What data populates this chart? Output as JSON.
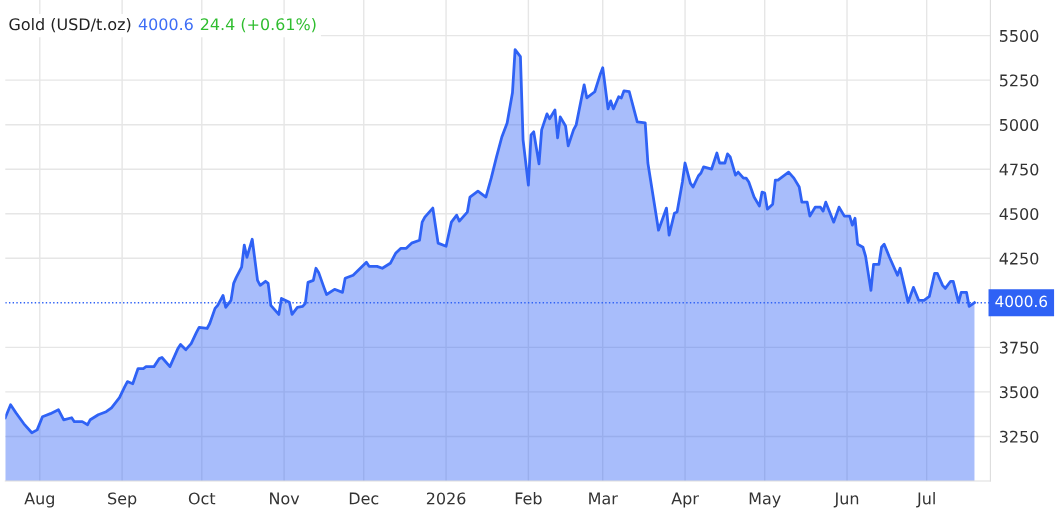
{
  "chart_data": {
    "type": "area",
    "title": "Gold (USD/t.oz)",
    "annotations": [
      "4000.6",
      "24.4 (+0.61%)"
    ],
    "series": [
      {
        "color": "#2f62f5",
        "x": [
          "2025-07-19",
          "2025-07-21",
          "2025-07-23",
          "2025-07-26",
          "2025-07-29",
          "2025-07-31",
          "2025-08-02",
          "2025-08-05",
          "2025-08-08",
          "2025-08-10",
          "2025-08-13",
          "2025-08-14",
          "2025-08-17",
          "2025-08-19",
          "2025-08-20",
          "2025-08-23",
          "2025-08-26",
          "2025-08-28",
          "2025-08-31",
          "2025-09-02",
          "2025-09-03",
          "2025-09-05",
          "2025-09-07",
          "2025-09-09",
          "2025-09-10",
          "2025-09-13",
          "2025-09-15",
          "2025-09-16",
          "2025-09-19",
          "2025-09-22",
          "2025-09-23",
          "2025-09-25",
          "2025-09-27",
          "2025-09-29",
          "2025-09-30",
          "2025-10-03",
          "2025-10-04",
          "2025-10-06",
          "2025-10-07",
          "2025-10-09",
          "2025-10-10",
          "2025-10-12",
          "2025-10-13",
          "2025-10-14",
          "2025-10-16",
          "2025-10-17",
          "2025-10-18",
          "2025-10-20",
          "2025-10-22",
          "2025-10-23",
          "2025-10-25",
          "2025-10-26",
          "2025-10-27",
          "2025-10-30",
          "2025-10-31",
          "2025-11-03",
          "2025-11-04",
          "2025-11-06",
          "2025-11-08",
          "2025-11-09",
          "2025-11-10",
          "2025-11-12",
          "2025-11-13",
          "2025-11-14",
          "2025-11-16",
          "2025-11-17",
          "2025-11-20",
          "2025-11-23",
          "2025-11-24",
          "2025-11-27",
          "2025-12-02",
          "2025-12-03",
          "2025-12-06",
          "2025-12-08",
          "2025-12-11",
          "2025-12-13",
          "2025-12-15",
          "2025-12-17",
          "2025-12-19",
          "2025-12-22",
          "2025-12-23",
          "2025-12-24",
          "2025-12-27",
          "2025-12-29",
          "2026-01-01",
          "2026-01-03",
          "2026-01-05",
          "2026-01-06",
          "2026-01-09",
          "2026-01-10",
          "2026-01-13",
          "2026-01-16",
          "2026-01-18",
          "2026-01-20",
          "2026-01-22",
          "2026-01-24",
          "2026-01-26",
          "2026-01-27",
          "2026-01-29",
          "2026-01-30",
          "2026-02-01",
          "2026-02-02",
          "2026-02-03",
          "2026-02-05",
          "2026-02-06",
          "2026-02-08",
          "2026-02-09",
          "2026-02-11",
          "2026-02-12",
          "2026-02-13",
          "2026-02-15",
          "2026-02-16",
          "2026-02-18",
          "2026-02-19",
          "2026-02-22",
          "2026-02-23",
          "2026-02-26",
          "2026-02-28",
          "2026-03-01",
          "2026-03-03",
          "2026-03-04",
          "2026-03-05",
          "2026-03-07",
          "2026-03-08",
          "2026-03-09",
          "2026-03-11",
          "2026-03-13",
          "2026-03-14",
          "2026-03-17",
          "2026-03-18",
          "2026-03-21",
          "2026-03-22",
          "2026-03-25",
          "2026-03-26",
          "2026-03-28",
          "2026-03-29",
          "2026-03-31",
          "2026-04-01",
          "2026-04-03",
          "2026-04-04",
          "2026-04-06",
          "2026-04-07",
          "2026-04-08",
          "2026-04-11",
          "2026-04-13",
          "2026-04-14",
          "2026-04-16",
          "2026-04-17",
          "2026-04-18",
          "2026-04-20",
          "2026-04-21",
          "2026-04-23",
          "2026-04-24",
          "2026-04-25",
          "2026-04-27",
          "2026-04-29",
          "2026-04-30",
          "2026-05-01",
          "2026-05-02",
          "2026-05-04",
          "2026-05-05",
          "2026-05-06",
          "2026-05-10",
          "2026-05-12",
          "2026-05-14",
          "2026-05-15",
          "2026-05-17",
          "2026-05-18",
          "2026-05-20",
          "2026-05-22",
          "2026-05-23",
          "2026-05-24",
          "2026-05-27",
          "2026-05-29",
          "2026-05-31",
          "2026-06-02",
          "2026-06-03",
          "2026-06-04",
          "2026-06-05",
          "2026-06-07",
          "2026-06-08",
          "2026-06-10",
          "2026-06-11",
          "2026-06-13",
          "2026-06-14",
          "2026-06-15",
          "2026-06-17",
          "2026-06-20",
          "2026-06-21",
          "2026-06-24",
          "2026-06-26",
          "2026-06-28",
          "2026-06-30",
          "2026-07-02",
          "2026-07-04",
          "2026-07-05",
          "2026-07-07",
          "2026-07-08",
          "2026-07-10",
          "2026-07-11",
          "2026-07-13",
          "2026-07-14",
          "2026-07-16",
          "2026-07-17",
          "2026-07-19"
        ],
        "values": [
          3355,
          3428,
          3383,
          3321,
          3271,
          3287,
          3361,
          3378,
          3400,
          3343,
          3355,
          3333,
          3333,
          3316,
          3344,
          3372,
          3389,
          3411,
          3468,
          3530,
          3558,
          3546,
          3631,
          3631,
          3642,
          3642,
          3687,
          3693,
          3642,
          3743,
          3766,
          3737,
          3771,
          3834,
          3862,
          3856,
          3884,
          3969,
          3986,
          4042,
          3975,
          4014,
          4109,
          4143,
          4200,
          4324,
          4256,
          4357,
          4126,
          4098,
          4121,
          4109,
          3986,
          3935,
          4025,
          4003,
          3935,
          3975,
          3980,
          3997,
          4115,
          4126,
          4194,
          4171,
          4087,
          4047,
          4076,
          4059,
          4138,
          4155,
          4228,
          4205,
          4205,
          4194,
          4222,
          4278,
          4306,
          4306,
          4335,
          4351,
          4453,
          4481,
          4532,
          4335,
          4318,
          4453,
          4492,
          4459,
          4509,
          4594,
          4627,
          4594,
          4700,
          4819,
          4931,
          5010,
          5179,
          5421,
          5382,
          4915,
          4661,
          4943,
          4960,
          4780,
          4971,
          5061,
          5033,
          5083,
          4926,
          5044,
          4993,
          4881,
          4971,
          4999,
          5224,
          5151,
          5185,
          5280,
          5320,
          5089,
          5134,
          5089,
          5157,
          5150,
          5190,
          5185,
          5072,
          5016,
          5010,
          4785,
          4503,
          4408,
          4532,
          4380,
          4503,
          4510,
          4678,
          4785,
          4672,
          4650,
          4712,
          4729,
          4763,
          4751,
          4841,
          4785,
          4785,
          4836,
          4819,
          4717,
          4734,
          4700,
          4700,
          4678,
          4594,
          4543,
          4622,
          4616,
          4526,
          4554,
          4689,
          4689,
          4734,
          4700,
          4650,
          4565,
          4565,
          4487,
          4537,
          4537,
          4515,
          4565,
          4453,
          4537,
          4487,
          4487,
          4436,
          4475,
          4329,
          4312,
          4261,
          4070,
          4216,
          4216,
          4312,
          4329,
          4256,
          4155,
          4194,
          4003,
          4087,
          4014,
          4014,
          4036,
          4166,
          4166,
          4098,
          4081,
          4121,
          4121,
          4003,
          4059,
          4059,
          3980,
          4000.6
        ]
      }
    ],
    "xlim": [
      "2025-07-19",
      "2026-07-25"
    ],
    "xticks": [
      {
        "value": "2025-08-01",
        "label": "Aug"
      },
      {
        "value": "2025-09-01",
        "label": "Sep"
      },
      {
        "value": "2025-10-01",
        "label": "Oct"
      },
      {
        "value": "2025-11-01",
        "label": "Nov"
      },
      {
        "value": "2025-12-01",
        "label": "Dec"
      },
      {
        "value": "2026-01-01",
        "label": "2026"
      },
      {
        "value": "2026-02-01",
        "label": "Feb"
      },
      {
        "value": "2026-03-01",
        "label": "Mar"
      },
      {
        "value": "2026-04-01",
        "label": "Apr"
      },
      {
        "value": "2026-05-01",
        "label": "May"
      },
      {
        "value": "2026-06-01",
        "label": "Jun"
      },
      {
        "value": "2026-07-01",
        "label": "Jul"
      }
    ],
    "ylim": [
      3000,
      5700
    ],
    "yticks": [
      3250,
      3500,
      3750,
      4250,
      4500,
      4750,
      5000,
      5250,
      5500
    ],
    "ref_lines": [
      {
        "axis": "y",
        "value": 4000.6,
        "label": "4000.6",
        "color": "#2f62f5",
        "line_style": "dotted"
      }
    ],
    "grid": true,
    "legend": false,
    "marker": "none",
    "line_style": "solid"
  }
}
